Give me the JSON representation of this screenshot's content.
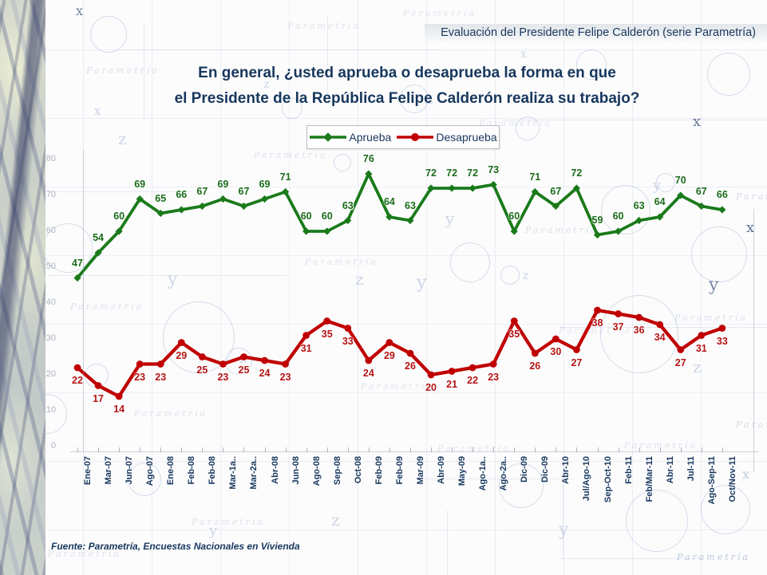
{
  "header": {
    "label": "Evaluación del Presidente Felipe Calderón (serie Parametría)"
  },
  "title": {
    "line1": "En general, ¿usted aprueba o desaprueba la forma en que",
    "line2": "el Presidente de la República Felipe Calderón realiza su trabajo?"
  },
  "legend": {
    "items": [
      {
        "label": "Aprueba",
        "color": "#1a7a1a",
        "marker": "diamond"
      },
      {
        "label": "Desaprueba",
        "color": "#c00000",
        "marker": "circle"
      }
    ]
  },
  "source": {
    "label": "Fuente: Parametría, Encuestas Nacionales en Vivienda"
  },
  "decor": {
    "watermark": "Parametría",
    "letters": [
      "x",
      "y",
      "z"
    ]
  },
  "chart_data": {
    "type": "line",
    "title": "En general, ¿usted aprueba o desaprueba la forma en que el Presidente de la República Felipe Calderón realiza su trabajo?",
    "xlabel": "",
    "ylabel": "",
    "ylim": [
      0,
      85
    ],
    "yaxis_ticks": [
      0,
      10,
      20,
      30,
      40,
      50,
      60,
      70,
      80
    ],
    "grid": true,
    "legend_position": "top",
    "categories": [
      "Ene-07",
      "Mar-07",
      "Jun-07",
      "Ago-07",
      "Ene-08",
      "Feb-08",
      "Feb-08",
      "Mar-1a..",
      "Mar-2a..",
      "Abr-08",
      "Jun-08",
      "Ago-08",
      "Sep-08",
      "Oct-08",
      "Feb-09",
      "Feb-09",
      "Mar-09",
      "Abr-09",
      "May-09",
      "Ago-1a..",
      "Ago-2a..",
      "Dic-09",
      "Dic-09",
      "Abr-10",
      "Jul/Ago-10",
      "Sep-Oct-10",
      "Feb-11",
      "Feb/Mar-11",
      "Abr-11",
      "Jul-11",
      "Ago-Sep-11",
      "Oct/Nov-11"
    ],
    "series": [
      {
        "name": "Aprueba",
        "color": "#1a7a1a",
        "marker": "diamond",
        "values": [
          47,
          54,
          60,
          69,
          65,
          66,
          67,
          69,
          67,
          69,
          71,
          60,
          60,
          63,
          76,
          64,
          63,
          72,
          72,
          72,
          73,
          60,
          71,
          67,
          72,
          59,
          60,
          63,
          64,
          70,
          67,
          66
        ]
      },
      {
        "name": "Desaprueba",
        "color": "#c00000",
        "marker": "circle",
        "values": [
          22,
          17,
          14,
          23,
          23,
          29,
          25,
          23,
          25,
          24,
          23,
          31,
          35,
          33,
          24,
          29,
          26,
          20,
          21,
          22,
          23,
          35,
          26,
          30,
          27,
          38,
          37,
          36,
          34,
          27,
          31,
          33
        ]
      }
    ]
  }
}
